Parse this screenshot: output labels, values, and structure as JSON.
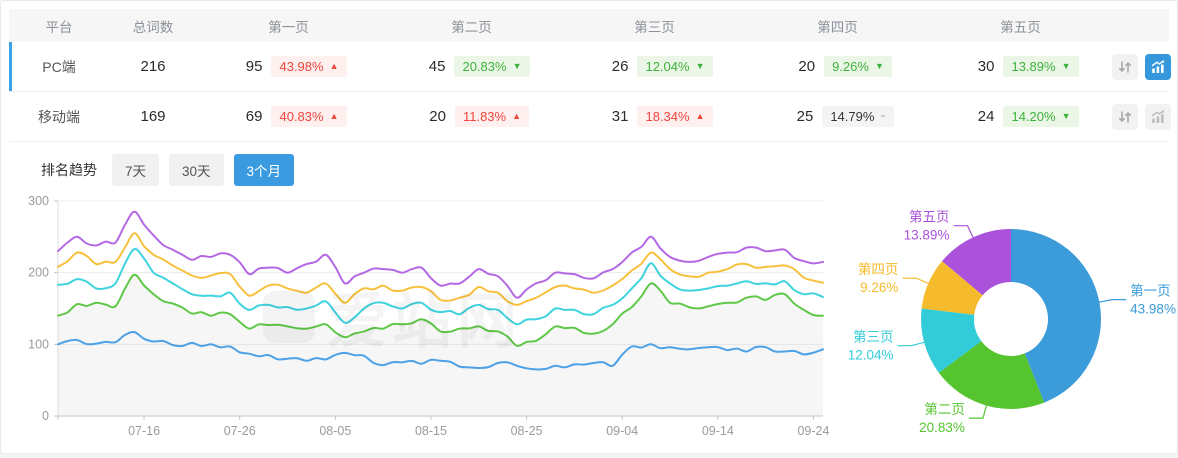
{
  "colors": {
    "accent_blue": "#3598DC",
    "selected_row_bar": "#3BA2E8",
    "badge_red_text": "#f0453e",
    "badge_red_bg": "#fdf0ee",
    "badge_green_text": "#3cb33c",
    "badge_green_bg": "#ecf6e7",
    "badge_gray_bg": "#f4f4f4",
    "line_palette": [
      "#4DA1E6",
      "#5FC848",
      "#3ED3DE",
      "#F7C13E",
      "#B468E4"
    ],
    "pie_palette": [
      "#3C9BD9",
      "#55C42F",
      "#32CBD8",
      "#F6BB2C",
      "#AA52DA"
    ]
  },
  "table": {
    "columns": [
      "平台",
      "总词数",
      "第一页",
      "第二页",
      "第三页",
      "第四页",
      "第五页"
    ],
    "rows": [
      {
        "platform": "PC端",
        "total": "216",
        "selected": true,
        "sort_active": false,
        "chart_active": true,
        "pages": [
          {
            "count": "95",
            "pct": "43.98%",
            "dir": "up",
            "tone": "red"
          },
          {
            "count": "45",
            "pct": "20.83%",
            "dir": "down",
            "tone": "green"
          },
          {
            "count": "26",
            "pct": "12.04%",
            "dir": "down",
            "tone": "green"
          },
          {
            "count": "20",
            "pct": "9.26%",
            "dir": "down",
            "tone": "green"
          },
          {
            "count": "30",
            "pct": "13.89%",
            "dir": "down",
            "tone": "green"
          }
        ]
      },
      {
        "platform": "移动端",
        "total": "169",
        "selected": false,
        "sort_active": false,
        "chart_active": false,
        "pages": [
          {
            "count": "69",
            "pct": "40.83%",
            "dir": "up",
            "tone": "red"
          },
          {
            "count": "20",
            "pct": "11.83%",
            "dir": "up",
            "tone": "red"
          },
          {
            "count": "31",
            "pct": "18.34%",
            "dir": "up",
            "tone": "red"
          },
          {
            "count": "25",
            "pct": "14.79%",
            "dir": "flat",
            "tone": "gray"
          },
          {
            "count": "24",
            "pct": "14.20%",
            "dir": "down",
            "tone": "green"
          }
        ]
      }
    ]
  },
  "trend": {
    "label": "排名趋势",
    "tabs": [
      {
        "label": "7天",
        "active": false
      },
      {
        "label": "30天",
        "active": false
      },
      {
        "label": "3个月",
        "active": true
      }
    ]
  },
  "watermark": {
    "text": "爱站网"
  },
  "chart_data": [
    {
      "type": "line",
      "title": "排名趋势 3个月",
      "x_ticks": [
        "07-16",
        "07-26",
        "08-05",
        "08-15",
        "08-25",
        "09-04",
        "09-14",
        "09-24"
      ],
      "ylim": [
        0,
        300
      ],
      "yticks": [
        0,
        100,
        200,
        300
      ],
      "grid": true,
      "legend": "none",
      "series": [
        {
          "name": "blue",
          "color": "#4DA1E6",
          "area": false,
          "values": [
            100,
            106,
            101,
            103,
            117,
            104,
            99,
            102,
            100,
            97,
            87,
            85,
            80,
            77,
            79,
            88,
            84,
            71,
            75,
            73,
            77,
            69,
            67,
            74,
            70,
            65,
            70,
            72,
            74,
            70,
            97,
            100,
            96,
            93,
            96,
            92,
            90,
            96,
            90,
            86,
            93
          ]
        },
        {
          "name": "green",
          "color": "#5FC848",
          "area": true,
          "values": [
            140,
            156,
            158,
            153,
            197,
            170,
            157,
            143,
            140,
            142,
            122,
            127,
            125,
            122,
            128,
            110,
            118,
            122,
            128,
            135,
            118,
            122,
            125,
            118,
            98,
            105,
            125,
            123,
            115,
            128,
            152,
            185,
            158,
            152,
            153,
            158,
            165,
            162,
            170,
            148,
            140
          ]
        },
        {
          "name": "cyan",
          "color": "#3ED3DE",
          "area": false,
          "values": [
            183,
            191,
            178,
            185,
            233,
            200,
            185,
            170,
            168,
            172,
            148,
            155,
            152,
            150,
            160,
            130,
            150,
            158,
            150,
            158,
            145,
            142,
            155,
            148,
            128,
            135,
            150,
            148,
            142,
            155,
            178,
            213,
            185,
            175,
            178,
            182,
            188,
            185,
            188,
            170,
            166
          ]
        },
        {
          "name": "yellow",
          "color": "#F7C13E",
          "area": false,
          "values": [
            208,
            228,
            212,
            215,
            255,
            225,
            210,
            196,
            196,
            198,
            168,
            182,
            178,
            172,
            185,
            158,
            178,
            182,
            175,
            180,
            162,
            165,
            180,
            172,
            155,
            165,
            180,
            178,
            172,
            182,
            203,
            228,
            205,
            195,
            200,
            205,
            212,
            208,
            210,
            193,
            186
          ]
        },
        {
          "name": "purple",
          "color": "#B468E4",
          "area": false,
          "values": [
            230,
            250,
            238,
            242,
            285,
            252,
            232,
            218,
            222,
            225,
            198,
            207,
            200,
            212,
            225,
            185,
            200,
            205,
            200,
            207,
            182,
            185,
            205,
            195,
            165,
            185,
            200,
            198,
            192,
            205,
            228,
            250,
            222,
            215,
            222,
            228,
            235,
            230,
            232,
            216,
            215
          ]
        }
      ]
    },
    {
      "type": "pie",
      "donut": true,
      "slices": [
        {
          "label": "第一页",
          "value": 43.98,
          "color": "#3C9BD9"
        },
        {
          "label": "第二页",
          "value": 20.83,
          "color": "#55C42F"
        },
        {
          "label": "第三页",
          "value": 12.04,
          "color": "#32CBD8"
        },
        {
          "label": "第四页",
          "value": 9.26,
          "color": "#F6BB2C"
        },
        {
          "label": "第五页",
          "value": 13.89,
          "color": "#AA52DA"
        }
      ]
    }
  ]
}
